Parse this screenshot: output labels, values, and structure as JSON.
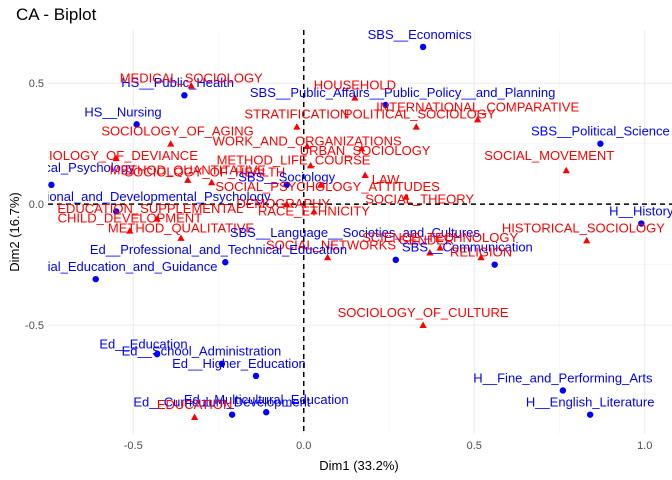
{
  "chart_data": {
    "type": "scatter",
    "title": "CA - Biplot",
    "xlabel": "Dim1 (33.2%)",
    "ylabel": "Dim2 (16.7%)",
    "xlim": [
      -0.75,
      1.08
    ],
    "ylim": [
      -0.95,
      0.72
    ],
    "xticks": [
      -0.5,
      0.0,
      0.5,
      1.0
    ],
    "yticks": [
      -0.5,
      0.0,
      0.5
    ],
    "xtick_labels": [
      "-0.5",
      "0.0",
      "0.5",
      "1.0"
    ],
    "ytick_labels": [
      "-0.5",
      "0.0",
      "0.5"
    ],
    "grid": true,
    "reference_lines": {
      "x": 0,
      "y": 0,
      "style": "dashed"
    },
    "colors": {
      "column": "#0000ff",
      "row": "#ff0000"
    },
    "series": [
      {
        "marker": "circle",
        "color": "#0000ff",
        "points": [
          {
            "label": "SBS__Economics",
            "x": 0.35,
            "y": 0.65
          },
          {
            "label": "HS__Public_Health",
            "x": -0.35,
            "y": 0.45
          },
          {
            "label": "SBS__Public_Affairs__Public_Policy__and_Planning",
            "x": 0.24,
            "y": 0.41
          },
          {
            "label": "HS__Nursing",
            "x": -0.49,
            "y": 0.33
          },
          {
            "label": "SBS__Political_Science",
            "x": 0.87,
            "y": 0.25
          },
          {
            "label": "SBS__Sociology",
            "x": -0.05,
            "y": 0.08
          },
          {
            "label": "Ed__Clinical_Psychology",
            "x": -0.74,
            "y": 0.08
          },
          {
            "label": "Ed__Educational_and_Developmental_Psychology",
            "x": -0.55,
            "y": -0.03
          },
          {
            "label": "H__History",
            "x": 0.99,
            "y": -0.08
          },
          {
            "label": "SBS__Language__Societies_and_Cultures",
            "x": 0.27,
            "y": -0.23
          },
          {
            "label": "Ed__Professional_and_Technical_Education",
            "x": -0.23,
            "y": -0.24
          },
          {
            "label": "SBS__Communication",
            "x": 0.56,
            "y": -0.25
          },
          {
            "label": "Ed__Special_Education_and_Guidance",
            "x": -0.61,
            "y": -0.31
          },
          {
            "label": "Ed__Education",
            "x": -0.43,
            "y": -0.62
          },
          {
            "label": "Ed__School_Administration",
            "x": -0.24,
            "y": -0.66
          },
          {
            "label": "Ed__Higher_Education",
            "x": -0.14,
            "y": -0.71
          },
          {
            "label": "H__Fine_and_Performing_Arts",
            "x": 0.76,
            "y": -0.77
          },
          {
            "label": "Ed__Multicultural_Education",
            "x": -0.11,
            "y": -0.86
          },
          {
            "label": "Ed__Curriculum_Development",
            "x": -0.21,
            "y": -0.87
          },
          {
            "label": "H__English_Literature",
            "x": 0.84,
            "y": -0.87
          }
        ]
      },
      {
        "marker": "triangle",
        "color": "#ff0000",
        "points": [
          {
            "label": "MEDICAL_SOCIOLOGY",
            "x": -0.33,
            "y": 0.49
          },
          {
            "label": "HOUSEHOLD",
            "x": 0.15,
            "y": 0.44
          },
          {
            "label": "INTERNATIONAL_COMPARATIVE",
            "x": 0.51,
            "y": 0.35
          },
          {
            "label": "POLITICAL_SOCIOLOGY",
            "x": 0.33,
            "y": 0.32
          },
          {
            "label": "STRATIFICATION",
            "x": -0.02,
            "y": 0.32
          },
          {
            "label": "SOCIOLOGY_OF_AGING",
            "x": -0.39,
            "y": 0.25
          },
          {
            "label": "WORK_AND_ORGANIZATIONS",
            "x": 0.01,
            "y": 0.24
          },
          {
            "label": "URBAN_SOCIOLOGY",
            "x": 0.17,
            "y": 0.23
          },
          {
            "label": "SOCIAL_MOVEMENT",
            "x": 0.77,
            "y": 0.14
          },
          {
            "label": "SOCIOLOGY_OF_DEVIANCE",
            "x": -0.55,
            "y": 0.19
          },
          {
            "label": "METHOD_LIFE_COURSE",
            "x": 0.02,
            "y": 0.16
          },
          {
            "label": "LAW",
            "x": 0.18,
            "y": 0.12
          },
          {
            "label": "METHOD_QUANTITATIVE",
            "x": -0.34,
            "y": 0.1
          },
          {
            "label": "SOCIOLOGY_OF_HEALTH",
            "x": -0.27,
            "y": 0.09
          },
          {
            "label": "SOCIAL_PSYCHOLOGY_ATTITUDES",
            "x": 0.05,
            "y": 0.08
          },
          {
            "label": "SOCIAL_THEORY",
            "x": 0.3,
            "y": 0.03
          },
          {
            "label": "DEMOGRAPHY",
            "x": -0.05,
            "y": 0.0
          },
          {
            "label": "CHILD_DEVELOPMENT",
            "x": -0.51,
            "y": -0.11
          },
          {
            "label": "RACE_ETHNICITY",
            "x": 0.03,
            "y": -0.03
          },
          {
            "label": "EDUCATION_SUPPLEMENTAL",
            "x": -0.43,
            "y": -0.06
          },
          {
            "label": "METHOD_QUALITATIVE",
            "x": -0.36,
            "y": -0.14
          },
          {
            "label": "HISTORICAL_SOCIOLOGY",
            "x": 0.83,
            "y": -0.15
          },
          {
            "label": "SOCIAL_NETWORKS",
            "x": 0.07,
            "y": -0.22
          },
          {
            "label": "RELIGION",
            "x": 0.52,
            "y": -0.22
          },
          {
            "label": "GENDER",
            "x": 0.37,
            "y": -0.2
          },
          {
            "label": "SCIENCE_TECHNOLOGY",
            "x": 0.4,
            "y": -0.18
          },
          {
            "label": "SOCIOLOGY_OF_CULTURE",
            "x": 0.35,
            "y": -0.5
          },
          {
            "label": "EDUCATION",
            "x": -0.32,
            "y": -0.88
          }
        ]
      }
    ],
    "labels": [
      {
        "text": "SBS__Economics",
        "color": "blue",
        "x": 0.34,
        "y": 0.7
      },
      {
        "text": "SBS__Public_Affairs__Public_Policy__and_Planning",
        "color": "blue",
        "x": 0.29,
        "y": 0.46
      },
      {
        "text": "HS__Public_Health",
        "color": "blue",
        "x": -0.37,
        "y": 0.5
      },
      {
        "text": "MEDICAL_SOCIOLOGY",
        "color": "red",
        "x": -0.33,
        "y": 0.52
      },
      {
        "text": "HOUSEHOLD",
        "color": "red",
        "x": 0.15,
        "y": 0.49
      },
      {
        "text": "HS__Nursing",
        "color": "blue",
        "x": -0.53,
        "y": 0.38
      },
      {
        "text": "STRATIFICATION",
        "color": "red",
        "x": -0.02,
        "y": 0.37
      },
      {
        "text": "INTERNATIONAL_COMPARATIVE",
        "color": "red",
        "x": 0.51,
        "y": 0.4
      },
      {
        "text": "POLITICAL_SOCIOLOGY",
        "color": "red",
        "x": 0.34,
        "y": 0.37
      },
      {
        "text": "SOCIOLOGY_OF_AGING",
        "color": "red",
        "x": -0.37,
        "y": 0.3
      },
      {
        "text": "SBS__Political_Science",
        "color": "blue",
        "x": 0.87,
        "y": 0.3
      },
      {
        "text": "WORK_AND_ORGANIZATIONS",
        "color": "red",
        "x": 0.01,
        "y": 0.26
      },
      {
        "text": "URBAN_SOCIOLOGY",
        "color": "red",
        "x": 0.18,
        "y": 0.22
      },
      {
        "text": "SOCIOLOGY_OF_DEVIANCE",
        "color": "red",
        "x": -0.57,
        "y": 0.2
      },
      {
        "text": "METHOD_LIFE_COURSE",
        "color": "red",
        "x": -0.03,
        "y": 0.18
      },
      {
        "text": "SOCIAL_MOVEMENT",
        "color": "red",
        "x": 0.72,
        "y": 0.2
      },
      {
        "text": "Ed__Clinical_Psychology",
        "color": "blue",
        "x": -0.71,
        "y": 0.15
      },
      {
        "text": "METHOD_QUANTITATIVE",
        "color": "red",
        "x": -0.34,
        "y": 0.14
      },
      {
        "text": "SOCIOLOGY_OF_HEALTH",
        "color": "red",
        "x": -0.29,
        "y": 0.13
      },
      {
        "text": "SBS__Sociology",
        "color": "blue",
        "x": -0.05,
        "y": 0.11
      },
      {
        "text": "LAW",
        "color": "red",
        "x": 0.24,
        "y": 0.1
      },
      {
        "text": "SOCIAL_PSYCHOLOGY_ATTITUDES",
        "color": "red",
        "x": 0.07,
        "y": 0.07
      },
      {
        "text": "Ed__Educational_and_Developmental_Psychology",
        "color": "blue",
        "x": -0.53,
        "y": 0.03
      },
      {
        "text": "SOCIAL_THEORY",
        "color": "red",
        "x": 0.34,
        "y": 0.02
      },
      {
        "text": "DEMOGRAPHY",
        "color": "red",
        "x": -0.06,
        "y": 0.0
      },
      {
        "text": "EDUCATION_SUPPLEMENTAL",
        "color": "red",
        "x": -0.45,
        "y": -0.02
      },
      {
        "text": "RACE_ETHNICITY",
        "color": "red",
        "x": 0.03,
        "y": -0.03
      },
      {
        "text": "CHILD_DEVELOPMENT",
        "color": "red",
        "x": -0.51,
        "y": -0.06
      },
      {
        "text": "METHOD_QUALITATIVE",
        "color": "red",
        "x": -0.36,
        "y": -0.1
      },
      {
        "text": "H__History",
        "color": "blue",
        "x": 0.99,
        "y": -0.03
      },
      {
        "text": "HISTORICAL_SOCIOLOGY",
        "color": "red",
        "x": 0.82,
        "y": -0.1
      },
      {
        "text": "SBS__Language__Societies_and_Cultures",
        "color": "blue",
        "x": 0.15,
        "y": -0.12
      },
      {
        "text": "SOCIAL_NETWORKS",
        "color": "red",
        "x": 0.08,
        "y": -0.17
      },
      {
        "text": "GENDER",
        "color": "red",
        "x": 0.36,
        "y": -0.15
      },
      {
        "text": "SCIENCE_TECHNOLOGY",
        "color": "red",
        "x": 0.4,
        "y": -0.14
      },
      {
        "text": "Ed__Professional_and_Technical_Education",
        "color": "blue",
        "x": -0.25,
        "y": -0.19
      },
      {
        "text": "SBS__Communication",
        "color": "blue",
        "x": 0.48,
        "y": -0.18
      },
      {
        "text": "RELIGION",
        "color": "red",
        "x": 0.52,
        "y": -0.2
      },
      {
        "text": "Ed__Special_Education_and_Guidance",
        "color": "blue",
        "x": -0.59,
        "y": -0.26
      },
      {
        "text": "SOCIOLOGY_OF_CULTURE",
        "color": "red",
        "x": 0.35,
        "y": -0.45
      },
      {
        "text": "Ed__Education",
        "color": "blue",
        "x": -0.47,
        "y": -0.58
      },
      {
        "text": "Ed__School_Administration",
        "color": "blue",
        "x": -0.3,
        "y": -0.61
      },
      {
        "text": "Ed__Higher_Education",
        "color": "blue",
        "x": -0.19,
        "y": -0.66
      },
      {
        "text": "H__Fine_and_Performing_Arts",
        "color": "blue",
        "x": 0.76,
        "y": -0.72
      },
      {
        "text": "Ed__Multicultural_Education",
        "color": "blue",
        "x": -0.11,
        "y": -0.81
      },
      {
        "text": "Ed__Curriculum_Development",
        "color": "blue",
        "x": -0.24,
        "y": -0.82
      },
      {
        "text": "EDUCATION",
        "color": "red",
        "x": -0.32,
        "y": -0.83
      },
      {
        "text": "H__English_Literature",
        "color": "blue",
        "x": 0.84,
        "y": -0.82
      }
    ]
  }
}
